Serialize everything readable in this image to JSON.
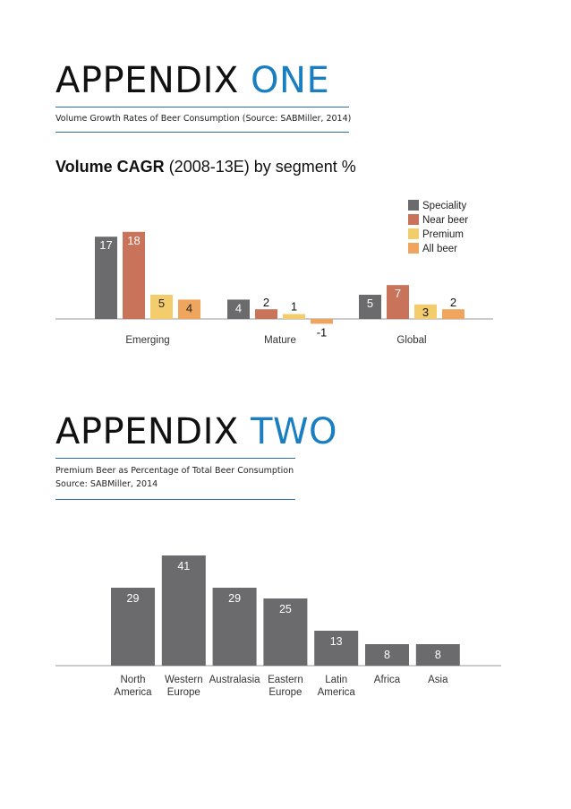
{
  "appendix_one": {
    "heading_main": "APPENDIX",
    "heading_accent": "ONE",
    "subtitle": "Volume Growth Rates of Beer Consumption (Source: SABMiller, 2014)"
  },
  "appendix_two": {
    "heading_main": "APPENDIX",
    "heading_accent": "TWO",
    "subtitle_line1": "Premium Beer as Percentage of Total Beer Consumption",
    "subtitle_line2": "Source: SABMiller, 2014"
  },
  "colors": {
    "accent": "#1a7fc1",
    "speciality": "#6b6b6d",
    "near_beer": "#c8735a",
    "premium": "#f3cd6b",
    "all_beer": "#f0a55e"
  },
  "chart_data": [
    {
      "type": "bar",
      "title_bold": "Volume CAGR",
      "title_rest": " (2008-13E) by segment %",
      "categories": [
        "Emerging",
        "Mature",
        "Global"
      ],
      "series": [
        {
          "name": "Speciality",
          "values": [
            17,
            4,
            5
          ]
        },
        {
          "name": "Near beer",
          "values": [
            18,
            2,
            7
          ]
        },
        {
          "name": "Premium",
          "values": [
            5,
            1,
            3
          ]
        },
        {
          "name": "All beer",
          "values": [
            4,
            -1,
            2
          ]
        }
      ],
      "ylim": [
        -1,
        18
      ],
      "legend": "top-right"
    },
    {
      "type": "bar",
      "categories": [
        [
          "North",
          "America"
        ],
        [
          "Western",
          "Europe"
        ],
        [
          "Australasia"
        ],
        [
          "Eastern",
          "Europe"
        ],
        [
          "Latin",
          "America"
        ],
        [
          "Africa"
        ],
        [
          "Asia"
        ]
      ],
      "values": [
        29,
        41,
        29,
        25,
        13,
        8,
        8
      ],
      "ylim": [
        0,
        41
      ]
    }
  ]
}
